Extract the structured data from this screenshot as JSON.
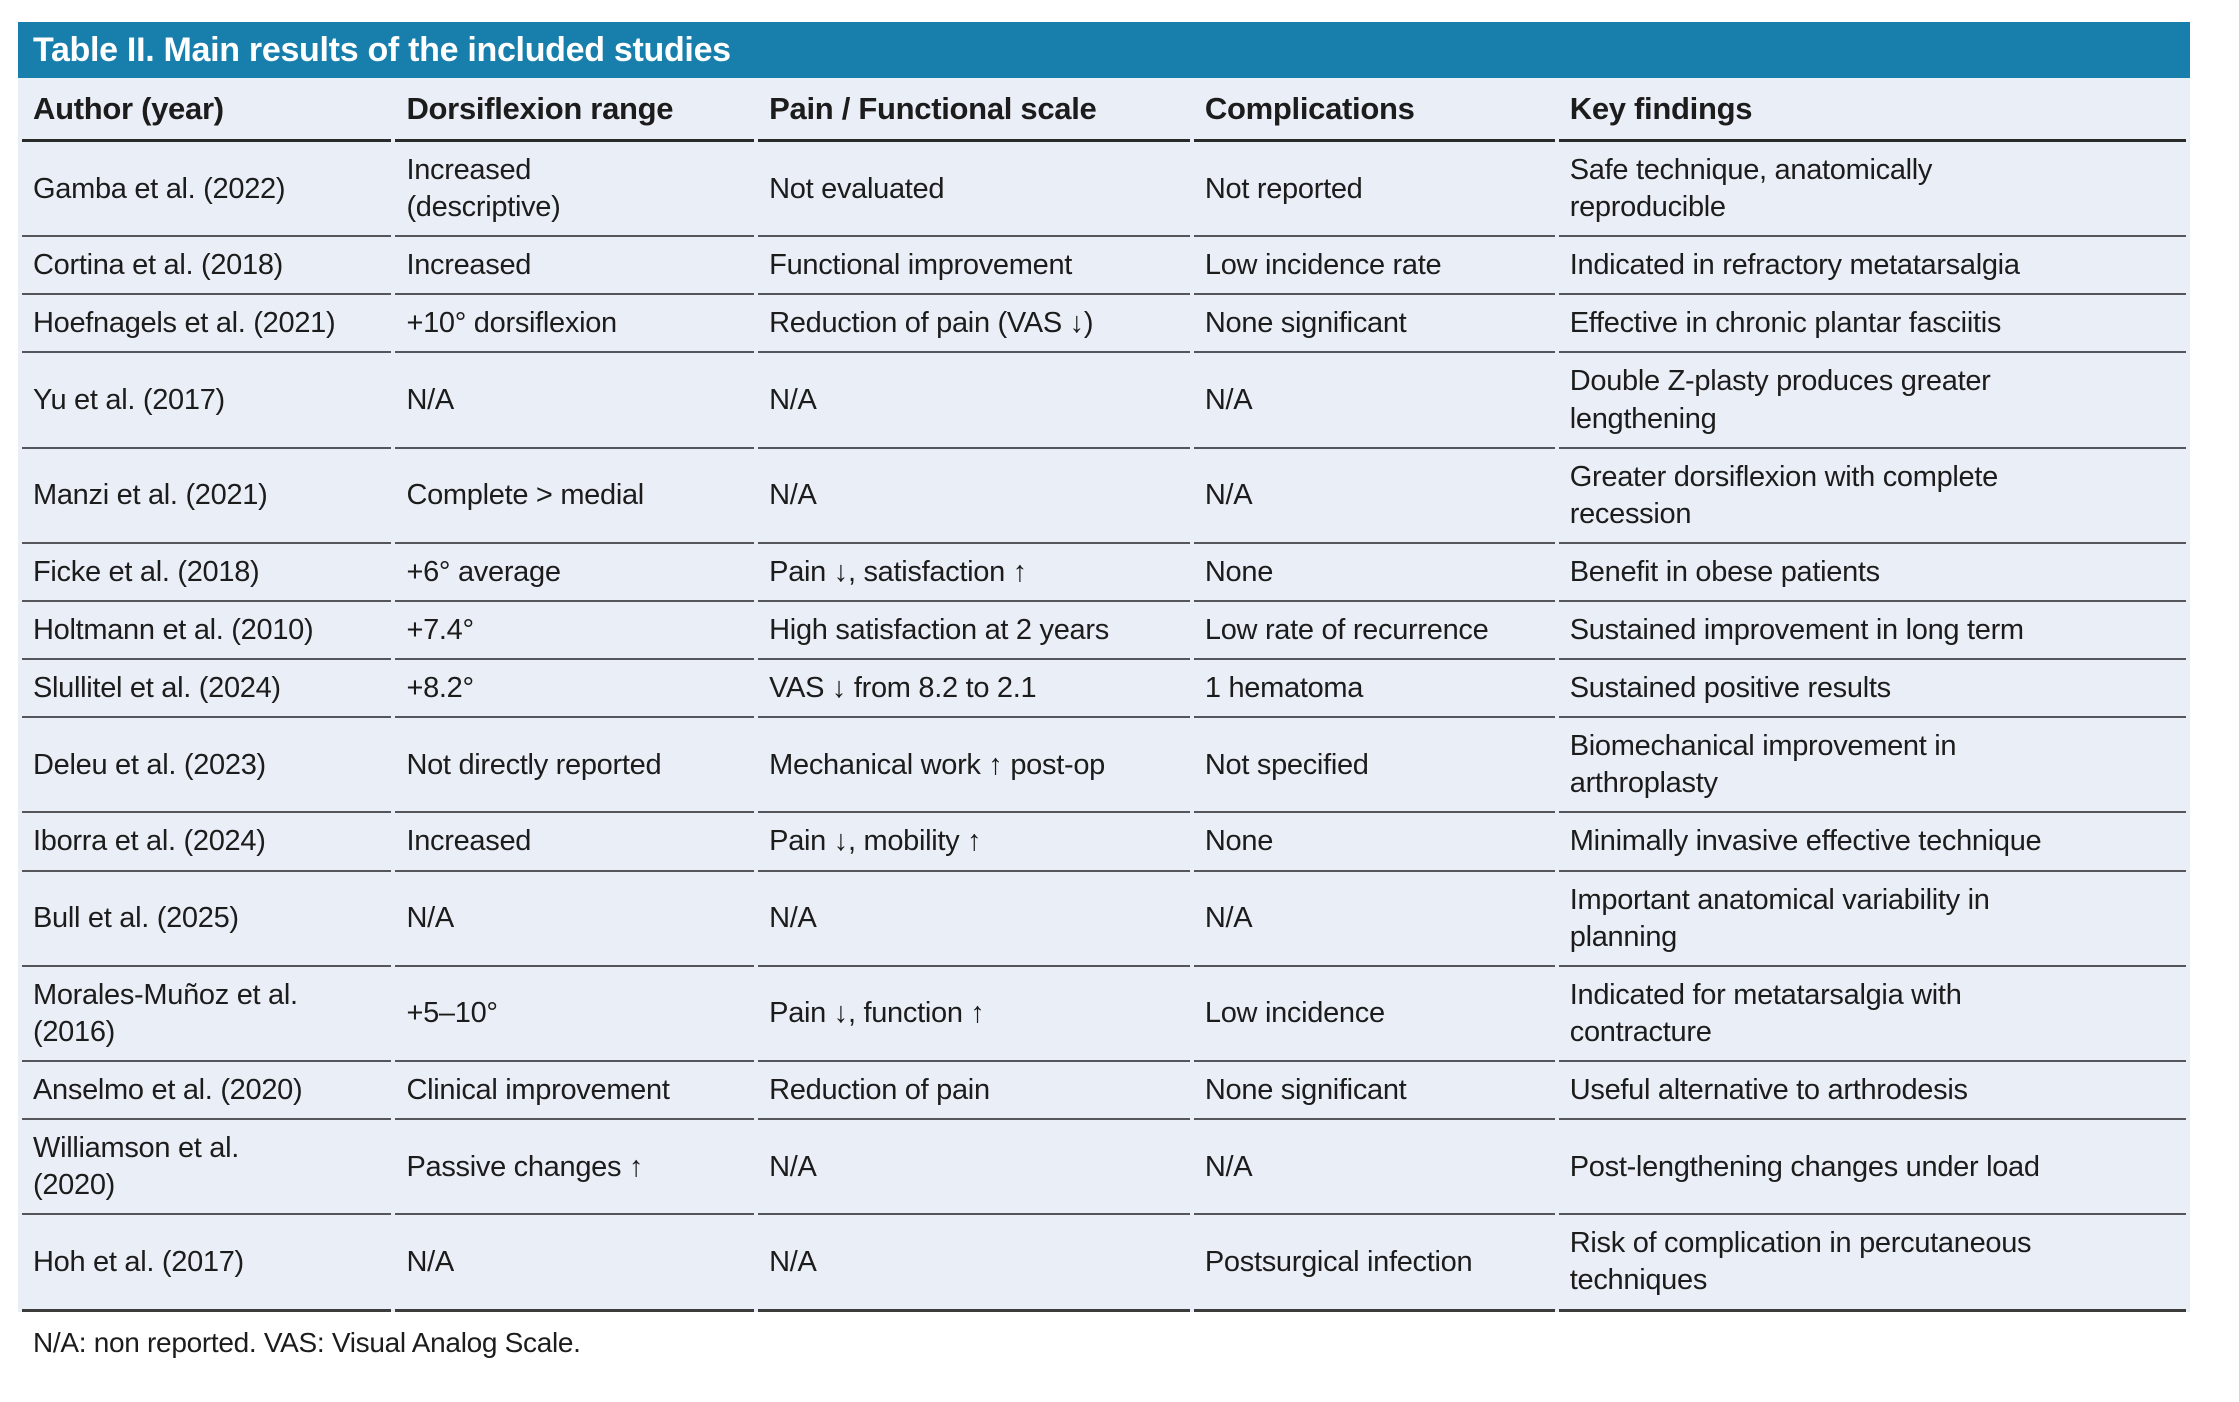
{
  "table": {
    "title": "Table II. Main results of the included studies",
    "columns": [
      "Author (year)",
      "Dorsiflexion range",
      "Pain / Functional scale",
      "Complications",
      "Key findings"
    ],
    "column_keys": [
      "author",
      "dorsiflexion-range",
      "pain-functional-scale",
      "complications",
      "key-findings"
    ],
    "rows": [
      [
        "Gamba et al. (2022)",
        "Increased\n(descriptive)",
        "Not evaluated",
        "Not reported",
        "Safe technique, anatomically\nreproducible"
      ],
      [
        "Cortina et al. (2018)",
        "Increased",
        "Functional improvement",
        "Low incidence rate",
        "Indicated in refractory metatarsalgia"
      ],
      [
        "Hoefnagels et al. (2021)",
        "+10° dorsiflexion",
        "Reduction of pain (VAS ↓)",
        "None significant",
        "Effective in chronic plantar fasciitis"
      ],
      [
        "Yu et al. (2017)",
        "N/A",
        "N/A",
        "N/A",
        "Double Z-plasty produces greater\nlengthening"
      ],
      [
        "Manzi et al. (2021)",
        "Complete > medial",
        "N/A",
        "N/A",
        "Greater dorsiflexion with complete\nrecession"
      ],
      [
        "Ficke et al. (2018)",
        "+6° average",
        "Pain ↓, satisfaction ↑",
        "None",
        "Benefit in obese patients"
      ],
      [
        "Holtmann et al. (2010)",
        "+7.4°",
        "High satisfaction at 2 years",
        "Low rate of recurrence",
        "Sustained improvement in long term"
      ],
      [
        "Slullitel et al. (2024)",
        "+8.2°",
        "VAS ↓ from 8.2 to 2.1",
        "1 hematoma",
        "Sustained positive results"
      ],
      [
        "Deleu et al. (2023)",
        "Not directly reported",
        "Mechanical work ↑ post-op",
        "Not specified",
        "Biomechanical improvement in\narthroplasty"
      ],
      [
        "Iborra et al. (2024)",
        "Increased",
        "Pain ↓, mobility ↑",
        "None",
        "Minimally invasive effective technique"
      ],
      [
        "Bull et al. (2025)",
        "N/A",
        "N/A",
        "N/A",
        "Important anatomical variability in\nplanning"
      ],
      [
        "Morales-Muñoz et al.\n(2016)",
        "+5–10°",
        "Pain ↓, function ↑",
        "Low incidence",
        "Indicated for metatarsalgia with\ncontracture"
      ],
      [
        "Anselmo et al. (2020)",
        "Clinical improvement",
        "Reduction of pain",
        "None significant",
        "Useful alternative to arthrodesis"
      ],
      [
        "Williamson et al.\n(2020)",
        "Passive changes ↑",
        "N/A",
        "N/A",
        "Post-lengthening changes under load"
      ],
      [
        "Hoh et al. (2017)",
        "N/A",
        "N/A",
        "Postsurgical infection",
        "Risk of complication in percutaneous\ntechniques"
      ]
    ],
    "footnote": "N/A: non reported. VAS: Visual Analog Scale.",
    "colors": {
      "header_bg": "#187fac",
      "title_text": "#ffffff",
      "row_bg": "#eaeef6",
      "divider": "#55565c",
      "text": "#1c1c1c"
    }
  }
}
